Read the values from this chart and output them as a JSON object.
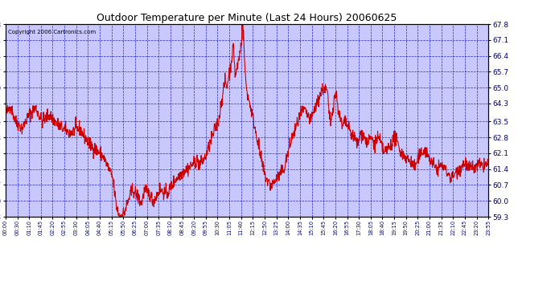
{
  "title": "Outdoor Temperature per Minute (Last 24 Hours) 20060625",
  "copyright": "Copyright 2006 Cartronics.com",
  "ylim": [
    59.3,
    67.8
  ],
  "yticks": [
    59.3,
    60.0,
    60.7,
    61.4,
    62.1,
    62.8,
    63.5,
    64.3,
    65.0,
    65.7,
    66.4,
    67.1,
    67.8
  ],
  "xtick_labels": [
    "00:00",
    "00:30",
    "01:10",
    "01:45",
    "02:20",
    "02:55",
    "03:30",
    "04:05",
    "04:40",
    "05:15",
    "05:50",
    "06:25",
    "07:00",
    "07:35",
    "08:10",
    "08:45",
    "09:20",
    "09:55",
    "10:30",
    "11:05",
    "11:40",
    "12:15",
    "12:50",
    "13:25",
    "14:00",
    "14:35",
    "15:10",
    "15:45",
    "16:20",
    "16:55",
    "17:30",
    "18:05",
    "18:40",
    "19:15",
    "19:50",
    "20:25",
    "21:00",
    "21:35",
    "22:10",
    "22:45",
    "23:20",
    "23:55"
  ],
  "bg_color": "#c8c8ff",
  "grid_color": "#0000bb",
  "line_color": "#cc0000",
  "title_color": "#000000",
  "tick_label_color": "#000080",
  "border_color": "#000000",
  "fig_width": 6.9,
  "fig_height": 3.75,
  "dpi": 100
}
